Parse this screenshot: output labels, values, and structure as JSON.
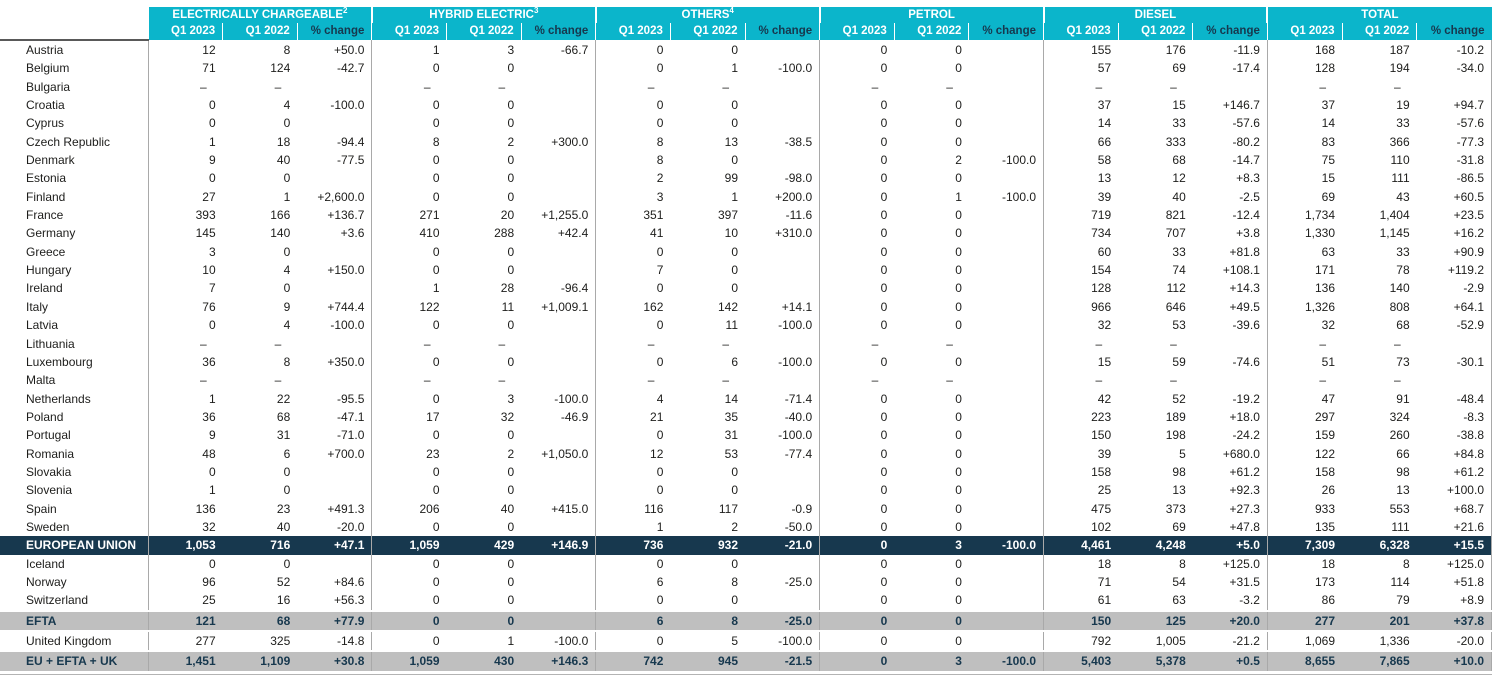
{
  "colors": {
    "header_cyan": "#0bb5cb",
    "eu_row_navy": "#17384e",
    "band_gray": "#bfbfbf",
    "header_pct_text_navy": "#17384e"
  },
  "table": {
    "groups": [
      {
        "label": "ELECTRICALLY CHARGEABLE",
        "sup": "2"
      },
      {
        "label": "HYBRID ELECTRIC",
        "sup": "3"
      },
      {
        "label": "OTHERS",
        "sup": "4"
      },
      {
        "label": "PETROL",
        "sup": ""
      },
      {
        "label": "DIESEL",
        "sup": ""
      },
      {
        "label": "TOTAL",
        "sup": ""
      }
    ],
    "subheaders": [
      "Q1 2023",
      "Q1 2022",
      "% change"
    ],
    "rows": [
      {
        "name": "Austria",
        "type": "country",
        "cells": [
          "12",
          "8",
          "+50.0",
          "1",
          "3",
          "-66.7",
          "0",
          "0",
          "",
          "0",
          "0",
          "",
          "155",
          "176",
          "-11.9",
          "168",
          "187",
          "-10.2"
        ]
      },
      {
        "name": "Belgium",
        "type": "country",
        "cells": [
          "71",
          "124",
          "-42.7",
          "0",
          "0",
          "",
          "0",
          "1",
          "-100.0",
          "0",
          "0",
          "",
          "57",
          "69",
          "-17.4",
          "128",
          "194",
          "-34.0"
        ]
      },
      {
        "name": "Bulgaria",
        "type": "country",
        "cells": [
          "–",
          "–",
          "",
          "–",
          "–",
          "",
          "–",
          "–",
          "",
          "–",
          "–",
          "",
          "–",
          "–",
          "",
          "–",
          "–",
          ""
        ]
      },
      {
        "name": "Croatia",
        "type": "country",
        "cells": [
          "0",
          "4",
          "-100.0",
          "0",
          "0",
          "",
          "0",
          "0",
          "",
          "0",
          "0",
          "",
          "37",
          "15",
          "+146.7",
          "37",
          "19",
          "+94.7"
        ]
      },
      {
        "name": "Cyprus",
        "type": "country",
        "cells": [
          "0",
          "0",
          "",
          "0",
          "0",
          "",
          "0",
          "0",
          "",
          "0",
          "0",
          "",
          "14",
          "33",
          "-57.6",
          "14",
          "33",
          "-57.6"
        ]
      },
      {
        "name": "Czech Republic",
        "type": "country",
        "cells": [
          "1",
          "18",
          "-94.4",
          "8",
          "2",
          "+300.0",
          "8",
          "13",
          "-38.5",
          "0",
          "0",
          "",
          "66",
          "333",
          "-80.2",
          "83",
          "366",
          "-77.3"
        ]
      },
      {
        "name": "Denmark",
        "type": "country",
        "cells": [
          "9",
          "40",
          "-77.5",
          "0",
          "0",
          "",
          "8",
          "0",
          "",
          "0",
          "2",
          "-100.0",
          "58",
          "68",
          "-14.7",
          "75",
          "110",
          "-31.8"
        ]
      },
      {
        "name": "Estonia",
        "type": "country",
        "cells": [
          "0",
          "0",
          "",
          "0",
          "0",
          "",
          "2",
          "99",
          "-98.0",
          "0",
          "0",
          "",
          "13",
          "12",
          "+8.3",
          "15",
          "111",
          "-86.5"
        ]
      },
      {
        "name": "Finland",
        "type": "country",
        "cells": [
          "27",
          "1",
          "+2,600.0",
          "0",
          "0",
          "",
          "3",
          "1",
          "+200.0",
          "0",
          "1",
          "-100.0",
          "39",
          "40",
          "-2.5",
          "69",
          "43",
          "+60.5"
        ]
      },
      {
        "name": "France",
        "type": "country",
        "cells": [
          "393",
          "166",
          "+136.7",
          "271",
          "20",
          "+1,255.0",
          "351",
          "397",
          "-11.6",
          "0",
          "0",
          "",
          "719",
          "821",
          "-12.4",
          "1,734",
          "1,404",
          "+23.5"
        ]
      },
      {
        "name": "Germany",
        "type": "country",
        "cells": [
          "145",
          "140",
          "+3.6",
          "410",
          "288",
          "+42.4",
          "41",
          "10",
          "+310.0",
          "0",
          "0",
          "",
          "734",
          "707",
          "+3.8",
          "1,330",
          "1,145",
          "+16.2"
        ]
      },
      {
        "name": "Greece",
        "type": "country",
        "cells": [
          "3",
          "0",
          "",
          "0",
          "0",
          "",
          "0",
          "0",
          "",
          "0",
          "0",
          "",
          "60",
          "33",
          "+81.8",
          "63",
          "33",
          "+90.9"
        ]
      },
      {
        "name": "Hungary",
        "type": "country",
        "cells": [
          "10",
          "4",
          "+150.0",
          "0",
          "0",
          "",
          "7",
          "0",
          "",
          "0",
          "0",
          "",
          "154",
          "74",
          "+108.1",
          "171",
          "78",
          "+119.2"
        ]
      },
      {
        "name": "Ireland",
        "type": "country",
        "cells": [
          "7",
          "0",
          "",
          "1",
          "28",
          "-96.4",
          "0",
          "0",
          "",
          "0",
          "0",
          "",
          "128",
          "112",
          "+14.3",
          "136",
          "140",
          "-2.9"
        ]
      },
      {
        "name": "Italy",
        "type": "country",
        "cells": [
          "76",
          "9",
          "+744.4",
          "122",
          "11",
          "+1,009.1",
          "162",
          "142",
          "+14.1",
          "0",
          "0",
          "",
          "966",
          "646",
          "+49.5",
          "1,326",
          "808",
          "+64.1"
        ]
      },
      {
        "name": "Latvia",
        "type": "country",
        "cells": [
          "0",
          "4",
          "-100.0",
          "0",
          "0",
          "",
          "0",
          "11",
          "-100.0",
          "0",
          "0",
          "",
          "32",
          "53",
          "-39.6",
          "32",
          "68",
          "-52.9"
        ]
      },
      {
        "name": "Lithuania",
        "type": "country",
        "cells": [
          "–",
          "–",
          "",
          "–",
          "–",
          "",
          "–",
          "–",
          "",
          "–",
          "–",
          "",
          "–",
          "–",
          "",
          "–",
          "–",
          ""
        ]
      },
      {
        "name": "Luxembourg",
        "type": "country",
        "cells": [
          "36",
          "8",
          "+350.0",
          "0",
          "0",
          "",
          "0",
          "6",
          "-100.0",
          "0",
          "0",
          "",
          "15",
          "59",
          "-74.6",
          "51",
          "73",
          "-30.1"
        ]
      },
      {
        "name": "Malta",
        "type": "country",
        "cells": [
          "–",
          "–",
          "",
          "–",
          "–",
          "",
          "–",
          "–",
          "",
          "–",
          "–",
          "",
          "–",
          "–",
          "",
          "–",
          "–",
          ""
        ]
      },
      {
        "name": "Netherlands",
        "type": "country",
        "cells": [
          "1",
          "22",
          "-95.5",
          "0",
          "3",
          "-100.0",
          "4",
          "14",
          "-71.4",
          "0",
          "0",
          "",
          "42",
          "52",
          "-19.2",
          "47",
          "91",
          "-48.4"
        ]
      },
      {
        "name": "Poland",
        "type": "country",
        "cells": [
          "36",
          "68",
          "-47.1",
          "17",
          "32",
          "-46.9",
          "21",
          "35",
          "-40.0",
          "0",
          "0",
          "",
          "223",
          "189",
          "+18.0",
          "297",
          "324",
          "-8.3"
        ]
      },
      {
        "name": "Portugal",
        "type": "country",
        "cells": [
          "9",
          "31",
          "-71.0",
          "0",
          "0",
          "",
          "0",
          "31",
          "-100.0",
          "0",
          "0",
          "",
          "150",
          "198",
          "-24.2",
          "159",
          "260",
          "-38.8"
        ]
      },
      {
        "name": "Romania",
        "type": "country",
        "cells": [
          "48",
          "6",
          "+700.0",
          "23",
          "2",
          "+1,050.0",
          "12",
          "53",
          "-77.4",
          "0",
          "0",
          "",
          "39",
          "5",
          "+680.0",
          "122",
          "66",
          "+84.8"
        ]
      },
      {
        "name": "Slovakia",
        "type": "country",
        "cells": [
          "0",
          "0",
          "",
          "0",
          "0",
          "",
          "0",
          "0",
          "",
          "0",
          "0",
          "",
          "158",
          "98",
          "+61.2",
          "158",
          "98",
          "+61.2"
        ]
      },
      {
        "name": "Slovenia",
        "type": "country",
        "cells": [
          "1",
          "0",
          "",
          "0",
          "0",
          "",
          "0",
          "0",
          "",
          "0",
          "0",
          "",
          "25",
          "13",
          "+92.3",
          "26",
          "13",
          "+100.0"
        ]
      },
      {
        "name": "Spain",
        "type": "country",
        "cells": [
          "136",
          "23",
          "+491.3",
          "206",
          "40",
          "+415.0",
          "116",
          "117",
          "-0.9",
          "0",
          "0",
          "",
          "475",
          "373",
          "+27.3",
          "933",
          "553",
          "+68.7"
        ]
      },
      {
        "name": "Sweden",
        "type": "country",
        "cells": [
          "32",
          "40",
          "-20.0",
          "0",
          "0",
          "",
          "1",
          "2",
          "-50.0",
          "0",
          "0",
          "",
          "102",
          "69",
          "+47.8",
          "135",
          "111",
          "+21.6"
        ]
      },
      {
        "name": "EUROPEAN UNION",
        "type": "eu",
        "cells": [
          "1,053",
          "716",
          "+47.1",
          "1,059",
          "429",
          "+146.9",
          "736",
          "932",
          "-21.0",
          "0",
          "3",
          "-100.0",
          "4,461",
          "4,248",
          "+5.0",
          "7,309",
          "6,328",
          "+15.5"
        ]
      },
      {
        "name": "Iceland",
        "type": "country",
        "cells": [
          "0",
          "0",
          "",
          "0",
          "0",
          "",
          "0",
          "0",
          "",
          "0",
          "0",
          "",
          "18",
          "8",
          "+125.0",
          "18",
          "8",
          "+125.0"
        ]
      },
      {
        "name": "Norway",
        "type": "country",
        "cells": [
          "96",
          "52",
          "+84.6",
          "0",
          "0",
          "",
          "6",
          "8",
          "-25.0",
          "0",
          "0",
          "",
          "71",
          "54",
          "+31.5",
          "173",
          "114",
          "+51.8"
        ]
      },
      {
        "name": "Switzerland",
        "type": "country",
        "cells": [
          "25",
          "16",
          "+56.3",
          "0",
          "0",
          "",
          "0",
          "0",
          "",
          "0",
          "0",
          "",
          "61",
          "63",
          "-3.2",
          "86",
          "79",
          "+8.9"
        ]
      },
      {
        "name": "EFTA",
        "type": "band",
        "cells": [
          "121",
          "68",
          "+77.9",
          "0",
          "0",
          "",
          "6",
          "8",
          "-25.0",
          "0",
          "0",
          "",
          "150",
          "125",
          "+20.0",
          "277",
          "201",
          "+37.8"
        ]
      },
      {
        "name": "United Kingdom",
        "type": "country",
        "cells": [
          "277",
          "325",
          "-14.8",
          "0",
          "1",
          "-100.0",
          "0",
          "5",
          "-100.0",
          "0",
          "0",
          "",
          "792",
          "1,005",
          "-21.2",
          "1,069",
          "1,336",
          "-20.0"
        ]
      },
      {
        "name": "EU + EFTA + UK",
        "type": "band",
        "cells": [
          "1,451",
          "1,109",
          "+30.8",
          "1,059",
          "430",
          "+146.3",
          "742",
          "945",
          "-21.5",
          "0",
          "3",
          "-100.0",
          "5,403",
          "5,378",
          "+0.5",
          "8,655",
          "7,865",
          "+10.0"
        ]
      }
    ]
  }
}
